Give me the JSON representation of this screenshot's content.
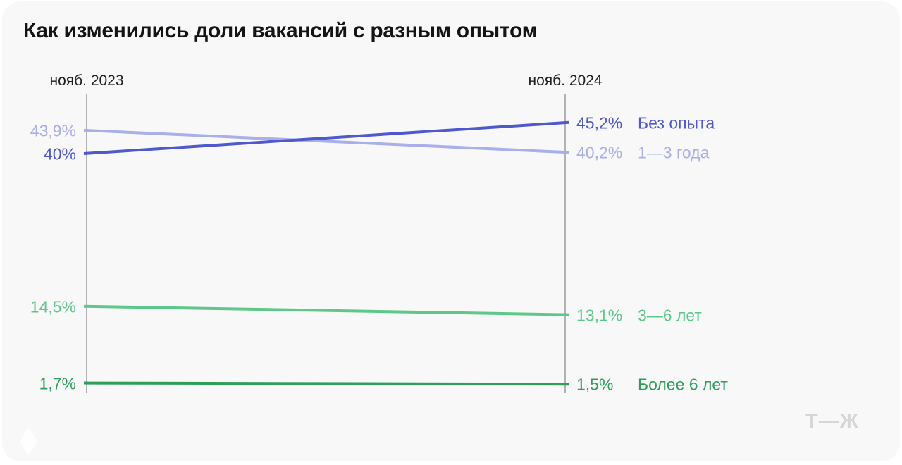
{
  "title": "Как изменились доли вакансий с разным опытом",
  "watermark": {
    "logo_text": "Т—Ж",
    "corner_icon": "diamond-icon"
  },
  "chart_data": {
    "type": "line",
    "subtype": "slopegraph",
    "title": "Как изменились доли вакансий с разным опытом",
    "columns": [
      "нояб. 2023",
      "нояб. 2024"
    ],
    "unit": "%",
    "ylim": [
      0,
      50
    ],
    "grid": false,
    "legend_position": "right-of-end-points",
    "axis_color": "#9b9b9b",
    "series": [
      {
        "name": "1—3 года",
        "values": [
          43.9,
          40.2
        ],
        "start_label": "43,9%",
        "end_label": "40,2%",
        "color": "#a9afe8"
      },
      {
        "name": "Без опыта",
        "values": [
          40.0,
          45.2
        ],
        "start_label": "40%",
        "end_label": "45,2%",
        "color": "#5059cb"
      },
      {
        "name": "3—6 лет",
        "values": [
          14.5,
          13.1
        ],
        "start_label": "14,5%",
        "end_label": "13,1%",
        "color": "#5ec88a"
      },
      {
        "name": "Более 6 лет",
        "values": [
          1.7,
          1.5
        ],
        "start_label": "1,7%",
        "end_label": "1,5%",
        "color": "#2f9e5b"
      }
    ]
  }
}
